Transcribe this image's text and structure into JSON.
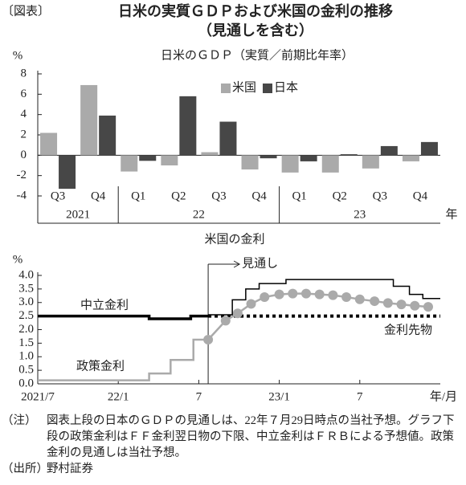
{
  "header": {
    "label": "〔図表〕",
    "title": "日米の実質ＧＤＰおよび米国の金利の推移",
    "subtitle": "（見通しを含む）"
  },
  "chart_data": [
    {
      "type": "bar",
      "title": "日米のＧＤＰ（実質／前期比年率）",
      "y_unit": "%",
      "x_unit": "年",
      "categories": [
        "Q3",
        "Q4",
        "Q1",
        "Q2",
        "Q3",
        "Q4",
        "Q1",
        "Q2",
        "Q3",
        "Q4"
      ],
      "groups": [
        {
          "label": "2021",
          "span": 2
        },
        {
          "label": "22",
          "span": 4
        },
        {
          "label": "23",
          "span": 4
        }
      ],
      "series": [
        {
          "name": "米国",
          "color": "#aaaaaa",
          "values": [
            2.2,
            6.9,
            -1.6,
            -1.0,
            0.3,
            -1.4,
            -1.7,
            -1.7,
            -1.3,
            -0.6
          ]
        },
        {
          "name": "日本",
          "color": "#474747",
          "values": [
            -3.3,
            3.9,
            -0.55,
            5.8,
            3.3,
            -0.3,
            -0.6,
            0.1,
            0.9,
            1.3
          ]
        }
      ],
      "ylim": [
        -4,
        8
      ],
      "yticks": [
        -4,
        -2,
        0,
        2,
        4,
        6,
        8
      ],
      "legend": "upper right"
    },
    {
      "type": "line",
      "title": "米国の金利",
      "y_unit": "%",
      "x_unit": "年/月",
      "forecast_label": "見通し",
      "forecast_x": 12.7,
      "xlim": [
        0,
        30
      ],
      "xticks": [
        {
          "value": 0,
          "label": "2021/7"
        },
        {
          "value": 6,
          "label": "22/1"
        },
        {
          "value": 12,
          "label": "7"
        },
        {
          "value": 18,
          "label": "23/1"
        },
        {
          "value": 24,
          "label": "7"
        }
      ],
      "ylim": [
        0,
        4
      ],
      "yticks": [
        {
          "value": 0,
          "label": "0.0"
        },
        0.5,
        {
          "value": 1,
          "label": "1.0"
        },
        1.5,
        {
          "value": 2,
          "label": "2.0"
        },
        2.5,
        {
          "value": 3,
          "label": "3.0"
        },
        3.5,
        {
          "value": 4,
          "label": "4.0"
        }
      ],
      "series": [
        {
          "name": "中立金利",
          "color": "#000000",
          "x": [
            0,
            8.3,
            8.3,
            11.4,
            11.4,
            12.7,
            30
          ],
          "values": [
            2.5,
            2.5,
            2.4,
            2.4,
            2.5,
            2.5,
            2.5
          ]
        },
        {
          "name": "政策金利",
          "color": "#aaaaaa",
          "x": [
            0,
            8.3,
            8.3,
            9.9,
            9.9,
            11.6,
            11.6,
            12.7,
            14.0,
            14.9,
            15.9,
            16.9,
            18.0,
            19.0,
            20.0,
            21.0,
            22.0,
            23.0,
            24.0,
            25.1,
            26.1,
            27.1,
            28.1,
            29.1
          ],
          "values": [
            0.13,
            0.13,
            0.38,
            0.38,
            0.88,
            0.88,
            1.63,
            1.63,
            2.33,
            2.6,
            2.95,
            3.2,
            3.3,
            3.33,
            3.33,
            3.3,
            3.27,
            3.2,
            3.12,
            3.05,
            2.98,
            2.93,
            2.88,
            2.84
          ]
        },
        {
          "name": "金利先物",
          "color": "#000000",
          "x": [
            12.7,
            14.5,
            14.5,
            15.5,
            15.5,
            16.5,
            16.5,
            18.5,
            18.5,
            26.5,
            26.5,
            27.7,
            27.7,
            28.7,
            28.7,
            30
          ],
          "values": [
            2.55,
            2.55,
            3.1,
            3.1,
            3.5,
            3.5,
            3.7,
            3.7,
            3.85,
            3.85,
            3.6,
            3.6,
            3.3,
            3.3,
            3.15,
            3.15
          ]
        }
      ]
    }
  ],
  "notes": [
    {
      "label": "（注）",
      "text": "図表上段の日本のＧＤＰの見通しは、22年７月29日時点の当社予想。グラフ下段の政策金利はＦＦ金利翌日物の下限、中立金利はＦＲＢによる予想値。政策金利の見通しは当社予想。"
    },
    {
      "label": "（出所）",
      "text": "野村証券"
    }
  ]
}
